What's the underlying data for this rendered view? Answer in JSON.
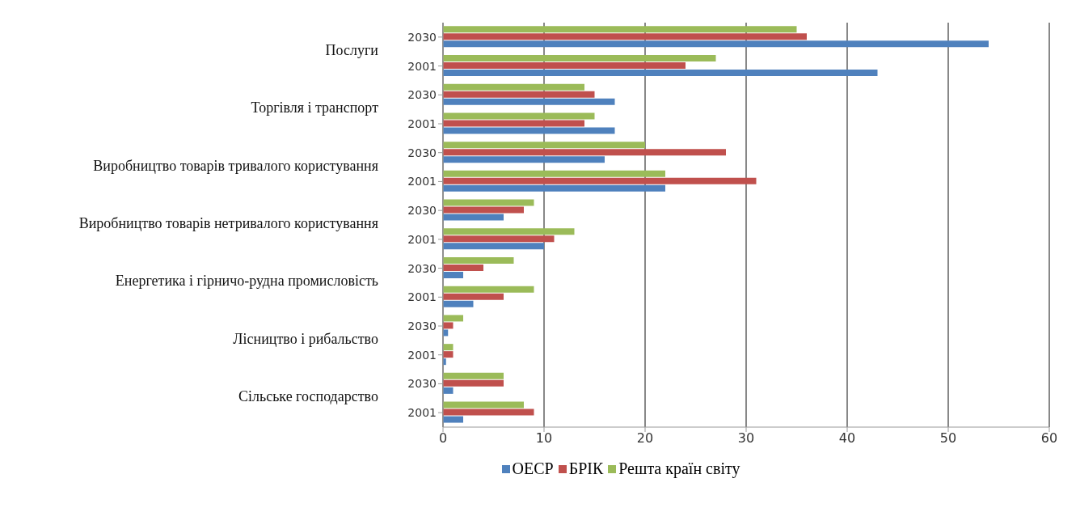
{
  "chart_data": {
    "type": "bar",
    "orientation": "horizontal",
    "categories": [
      "2030",
      "2001",
      "2030",
      "2001",
      "2030",
      "2001",
      "2030",
      "2001",
      "2030",
      "2001",
      "2030",
      "2001",
      "2030",
      "2001"
    ],
    "annotations": [
      "Послуги",
      "Торгівля і транспорт",
      "Виробництво товарів тривалого користування",
      "Виробництво товарів нетривалого користування",
      "Енергетика і гірничо-рудна промисловість",
      "Лісництво і рибальство",
      "Сільське господарство"
    ],
    "series": [
      {
        "name": "ОЕСР",
        "color": "#4f81bd",
        "values": [
          54,
          43,
          17,
          17,
          16,
          22,
          6,
          10,
          2,
          3,
          0.5,
          0.3,
          1,
          2
        ]
      },
      {
        "name": "БРІК",
        "color": "#c0504d",
        "values": [
          36,
          24,
          15,
          14,
          28,
          31,
          8,
          11,
          4,
          6,
          1,
          1,
          6,
          9
        ]
      },
      {
        "name": "Решта країн світу",
        "color": "#9bbb59",
        "values": [
          35,
          27,
          14,
          15,
          20,
          22,
          9,
          13,
          7,
          9,
          2,
          1,
          6,
          8
        ]
      }
    ],
    "xlim": [
      0,
      60
    ],
    "xticks": [
      0,
      10,
      20,
      30,
      40,
      50,
      60
    ],
    "grid": "x",
    "legend": "bottom"
  }
}
